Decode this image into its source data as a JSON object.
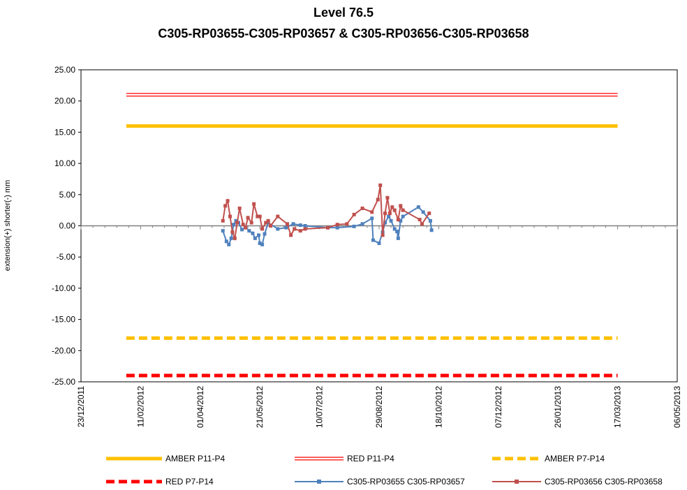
{
  "chart_data": {
    "type": "line",
    "title": "Level 76.5",
    "subtitle": "C305-RP03655-C305-RP03657 & C305-RP03656-C305-RP03658",
    "y_label": "extension(+) shorter(-) mm",
    "xlim": [
      "2011-12-23",
      "2013-05-06"
    ],
    "xticks": [
      {
        "value": "2011-12-23",
        "label": "23/12/2011"
      },
      {
        "value": "2012-02-11",
        "label": "11/02/2012"
      },
      {
        "value": "2012-04-01",
        "label": "01/04/2012"
      },
      {
        "value": "2012-05-21",
        "label": "21/05/2012"
      },
      {
        "value": "2012-07-10",
        "label": "10/07/2012"
      },
      {
        "value": "2012-08-29",
        "label": "29/08/2012"
      },
      {
        "value": "2012-10-18",
        "label": "18/10/2012"
      },
      {
        "value": "2012-12-07",
        "label": "07/12/2012"
      },
      {
        "value": "2013-01-26",
        "label": "26/01/2013"
      },
      {
        "value": "2013-03-17",
        "label": "17/03/2013"
      },
      {
        "value": "2013-05-06",
        "label": "06/05/2013"
      }
    ],
    "ylim": [
      -25,
      25
    ],
    "yticks": [
      {
        "value": 25,
        "label": "25.00"
      },
      {
        "value": 20,
        "label": "20.00"
      },
      {
        "value": 15,
        "label": "15.00"
      },
      {
        "value": 10,
        "label": "10.00"
      },
      {
        "value": 5,
        "label": "5.00"
      },
      {
        "value": 0,
        "label": "0.00"
      },
      {
        "value": -5,
        "label": "-5.00"
      },
      {
        "value": -10,
        "label": "-10.00"
      },
      {
        "value": -15,
        "label": "-15.00"
      },
      {
        "value": -20,
        "label": "-20.00"
      },
      {
        "value": -25,
        "label": "-25.00"
      }
    ],
    "grid": false,
    "legend": "bottom",
    "series": [
      {
        "name": "AMBER P11-P4",
        "color": "#ffc000",
        "line_style": "solid",
        "x": [
          "2012-01-30",
          "2013-03-17"
        ],
        "values": [
          16,
          16
        ]
      },
      {
        "name": "RED P11-P4",
        "color": "#ff0000",
        "line_style": "double",
        "x": [
          "2012-01-30",
          "2013-03-17"
        ],
        "values": [
          21,
          21
        ]
      },
      {
        "name": "AMBER P7-P14",
        "color": "#ffc000",
        "line_style": "dashed",
        "x": [
          "2012-01-30",
          "2013-03-17"
        ],
        "values": [
          -18,
          -18
        ]
      },
      {
        "name": "RED P7-P14",
        "color": "#ff0000",
        "line_style": "dashed",
        "x": [
          "2012-01-30",
          "2013-03-17"
        ],
        "values": [
          -24,
          -24
        ]
      },
      {
        "name": "C305-RP03655 C305-RP03657",
        "color": "#4f81bd",
        "line_style": "marker",
        "x": [
          "2012-04-20",
          "2012-04-23",
          "2012-04-25",
          "2012-04-27",
          "2012-04-29",
          "2012-05-01",
          "2012-05-03",
          "2012-05-06",
          "2012-05-09",
          "2012-05-12",
          "2012-05-15",
          "2012-05-17",
          "2012-05-20",
          "2012-05-21",
          "2012-05-23",
          "2012-05-25",
          "2012-05-28",
          "2012-06-05",
          "2012-06-12",
          "2012-06-18",
          "2012-06-24",
          "2012-06-28",
          "2012-07-17",
          "2012-07-25",
          "2012-08-08",
          "2012-08-15",
          "2012-08-23",
          "2012-08-24",
          "2012-08-29",
          "2012-09-01",
          "2012-09-03",
          "2012-09-06",
          "2012-09-08",
          "2012-09-11",
          "2012-09-13",
          "2012-09-14",
          "2012-09-16",
          "2012-09-18",
          "2012-10-01",
          "2012-10-05",
          "2012-10-11",
          "2012-10-12"
        ],
        "values": [
          -0.8,
          -2.5,
          -3.0,
          -2.0,
          0.2,
          0.8,
          0.5,
          -0.6,
          -0.2,
          -0.8,
          -1.2,
          -2.0,
          -1.5,
          -2.8,
          -3.0,
          -1.3,
          0.5,
          -0.5,
          -0.3,
          0.3,
          0.1,
          0.0,
          -0.3,
          -0.3,
          -0.1,
          0.3,
          1.2,
          -2.3,
          -2.8,
          -1.0,
          0.5,
          1.5,
          0.8,
          -0.5,
          -0.9,
          -2.0,
          0.8,
          1.5,
          3.0,
          2.2,
          0.8,
          -0.7
        ]
      },
      {
        "name": "C305-RP03656 C305-RP03658",
        "color": "#c0504d",
        "line_style": "marker",
        "x": [
          "2012-04-20",
          "2012-04-22",
          "2012-04-24",
          "2012-04-26",
          "2012-04-28",
          "2012-04-30",
          "2012-05-02",
          "2012-05-04",
          "2012-05-07",
          "2012-05-09",
          "2012-05-11",
          "2012-05-14",
          "2012-05-16",
          "2012-05-19",
          "2012-05-21",
          "2012-05-23",
          "2012-05-26",
          "2012-05-28",
          "2012-05-30",
          "2012-06-05",
          "2012-06-13",
          "2012-06-16",
          "2012-06-19",
          "2012-06-24",
          "2012-06-28",
          "2012-07-17",
          "2012-07-25",
          "2012-08-02",
          "2012-08-08",
          "2012-08-15",
          "2012-08-23",
          "2012-08-28",
          "2012-08-30",
          "2012-09-01",
          "2012-09-03",
          "2012-09-05",
          "2012-09-07",
          "2012-09-09",
          "2012-09-11",
          "2012-09-14",
          "2012-09-16",
          "2012-09-18",
          "2012-10-02",
          "2012-10-04",
          "2012-10-10"
        ],
        "values": [
          0.8,
          3.2,
          4.0,
          1.5,
          -1.0,
          -2.0,
          0.5,
          2.8,
          0.2,
          -0.3,
          1.3,
          0.5,
          3.5,
          1.5,
          1.5,
          -0.5,
          0.5,
          0.8,
          0.0,
          1.5,
          0.3,
          -1.5,
          -0.5,
          -0.8,
          -0.5,
          -0.3,
          0.2,
          0.3,
          1.8,
          2.8,
          2.2,
          4.2,
          6.5,
          -1.5,
          2.0,
          4.5,
          2.0,
          3.0,
          2.5,
          1.0,
          3.2,
          2.5,
          1.0,
          0.3,
          2.0
        ]
      }
    ]
  }
}
